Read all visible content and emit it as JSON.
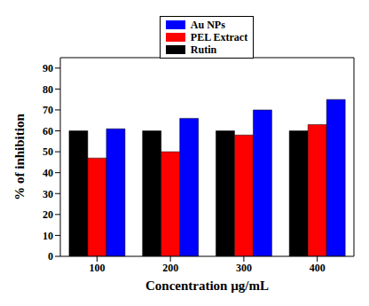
{
  "chart_data": {
    "type": "bar",
    "categories": [
      "100",
      "200",
      "300",
      "400"
    ],
    "series": [
      {
        "name": "Rutin",
        "color": "#000000",
        "values": [
          60,
          60,
          60,
          60
        ]
      },
      {
        "name": "PEL Extract",
        "color": "#ff0000",
        "values": [
          47,
          50,
          58,
          63
        ]
      },
      {
        "name": "Au NPs",
        "color": "#0000ff",
        "values": [
          61,
          66,
          70,
          75
        ]
      }
    ],
    "x_label": "Concentration µg/mL",
    "y_label": "% of inhibition",
    "ylim": [
      0,
      95
    ],
    "yticks": [
      0,
      10,
      20,
      30,
      40,
      50,
      60,
      70,
      80,
      90
    ],
    "legend": "top",
    "grid": false
  }
}
